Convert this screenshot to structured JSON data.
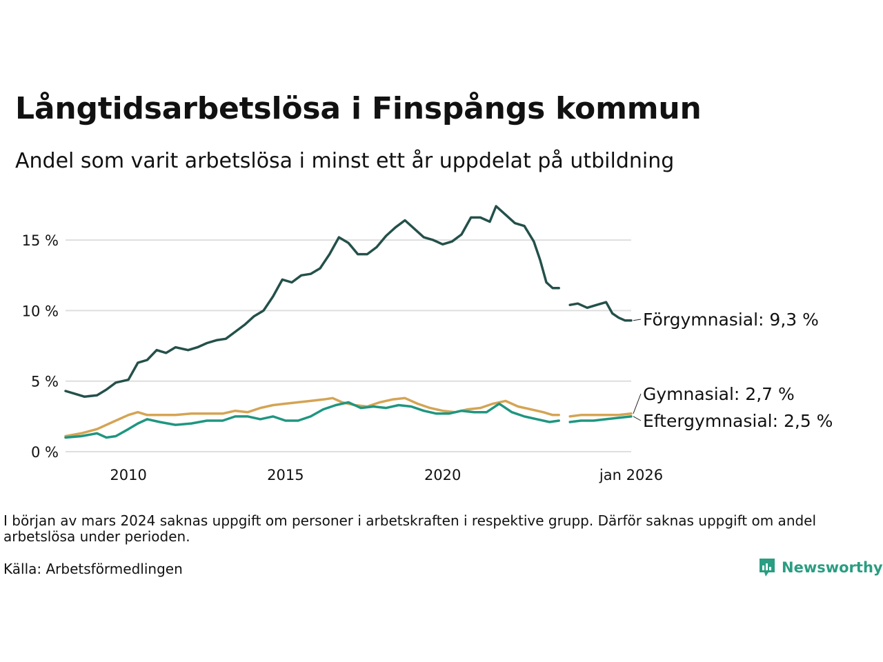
{
  "title": "Långtidsarbetslösa i Finspångs kommun",
  "subtitle": "Andel som varit arbetslösa i minst ett år uppdelat på utbildning",
  "note": "I början av mars 2024 saknas uppgift om personer i arbetskraften i respektive grupp. Därför saknas uppgift om andel arbetslösa under perioden.",
  "source": "Källa: Arbetsförmedlingen",
  "brand": {
    "name": "Newsworthy",
    "icon": "newsworthy-logo-icon",
    "color": "#2a9d82"
  },
  "chart_data": {
    "type": "line",
    "title": "Långtidsarbetslösa i Finspångs kommun",
    "xlabel": "",
    "ylabel": "",
    "x_unit": "year (decimal)",
    "xlim": [
      2008.0,
      2026.0
    ],
    "ylim": [
      0,
      17.5
    ],
    "grid": true,
    "y_ticks": [
      {
        "value": 0,
        "label": "0 %"
      },
      {
        "value": 5,
        "label": "5 %"
      },
      {
        "value": 10,
        "label": "10 %"
      },
      {
        "value": 15,
        "label": "15 %"
      }
    ],
    "x_ticks": [
      {
        "value": 2010,
        "label": "2010"
      },
      {
        "value": 2015,
        "label": "2015"
      },
      {
        "value": 2020,
        "label": "2020"
      },
      {
        "value": 2026,
        "label": "jan 2026"
      }
    ],
    "gap": [
      2023.7,
      2024.05
    ],
    "series": [
      {
        "name": "Förgymnasial",
        "end_label": "Förgymnasial: 9,3 %",
        "color": "#24504a",
        "points": [
          [
            2008.0,
            4.3
          ],
          [
            2008.3,
            4.1
          ],
          [
            2008.6,
            3.9
          ],
          [
            2009.0,
            4.0
          ],
          [
            2009.3,
            4.4
          ],
          [
            2009.6,
            4.9
          ],
          [
            2010.0,
            5.1
          ],
          [
            2010.3,
            6.3
          ],
          [
            2010.6,
            6.5
          ],
          [
            2010.9,
            7.2
          ],
          [
            2011.2,
            7.0
          ],
          [
            2011.5,
            7.4
          ],
          [
            2011.9,
            7.2
          ],
          [
            2012.2,
            7.4
          ],
          [
            2012.5,
            7.7
          ],
          [
            2012.8,
            7.9
          ],
          [
            2013.1,
            8.0
          ],
          [
            2013.4,
            8.5
          ],
          [
            2013.7,
            9.0
          ],
          [
            2014.0,
            9.6
          ],
          [
            2014.3,
            10.0
          ],
          [
            2014.6,
            11.0
          ],
          [
            2014.9,
            12.2
          ],
          [
            2015.2,
            12.0
          ],
          [
            2015.5,
            12.5
          ],
          [
            2015.8,
            12.6
          ],
          [
            2016.1,
            13.0
          ],
          [
            2016.4,
            14.0
          ],
          [
            2016.7,
            15.2
          ],
          [
            2017.0,
            14.8
          ],
          [
            2017.3,
            14.0
          ],
          [
            2017.6,
            14.0
          ],
          [
            2017.9,
            14.5
          ],
          [
            2018.2,
            15.3
          ],
          [
            2018.5,
            15.9
          ],
          [
            2018.8,
            16.4
          ],
          [
            2019.1,
            15.8
          ],
          [
            2019.4,
            15.2
          ],
          [
            2019.7,
            15.0
          ],
          [
            2020.0,
            14.7
          ],
          [
            2020.3,
            14.9
          ],
          [
            2020.6,
            15.4
          ],
          [
            2020.9,
            16.6
          ],
          [
            2021.2,
            16.6
          ],
          [
            2021.5,
            16.3
          ],
          [
            2021.7,
            17.4
          ],
          [
            2022.0,
            16.8
          ],
          [
            2022.3,
            16.2
          ],
          [
            2022.6,
            16.0
          ],
          [
            2022.9,
            14.9
          ],
          [
            2023.1,
            13.6
          ],
          [
            2023.3,
            12.0
          ],
          [
            2023.5,
            11.6
          ],
          [
            2023.7,
            11.6
          ],
          [
            2024.05,
            10.4
          ],
          [
            2024.3,
            10.5
          ],
          [
            2024.6,
            10.2
          ],
          [
            2024.9,
            10.4
          ],
          [
            2025.2,
            10.6
          ],
          [
            2025.4,
            9.8
          ],
          [
            2025.6,
            9.5
          ],
          [
            2025.8,
            9.3
          ],
          [
            2026.0,
            9.3
          ]
        ]
      },
      {
        "name": "Gymnasial",
        "end_label": "Gymnasial: 2,7 %",
        "color": "#d4a454",
        "points": [
          [
            2008.0,
            1.1
          ],
          [
            2008.5,
            1.3
          ],
          [
            2009.0,
            1.6
          ],
          [
            2009.5,
            2.1
          ],
          [
            2010.0,
            2.6
          ],
          [
            2010.3,
            2.8
          ],
          [
            2010.6,
            2.6
          ],
          [
            2011.0,
            2.6
          ],
          [
            2011.5,
            2.6
          ],
          [
            2012.0,
            2.7
          ],
          [
            2012.5,
            2.7
          ],
          [
            2013.0,
            2.7
          ],
          [
            2013.4,
            2.9
          ],
          [
            2013.8,
            2.8
          ],
          [
            2014.2,
            3.1
          ],
          [
            2014.6,
            3.3
          ],
          [
            2015.0,
            3.4
          ],
          [
            2015.4,
            3.5
          ],
          [
            2015.8,
            3.6
          ],
          [
            2016.2,
            3.7
          ],
          [
            2016.5,
            3.8
          ],
          [
            2016.8,
            3.5
          ],
          [
            2017.2,
            3.3
          ],
          [
            2017.6,
            3.2
          ],
          [
            2018.0,
            3.5
          ],
          [
            2018.4,
            3.7
          ],
          [
            2018.8,
            3.8
          ],
          [
            2019.2,
            3.4
          ],
          [
            2019.6,
            3.1
          ],
          [
            2020.0,
            2.9
          ],
          [
            2020.4,
            2.8
          ],
          [
            2020.8,
            3.0
          ],
          [
            2021.2,
            3.1
          ],
          [
            2021.6,
            3.4
          ],
          [
            2022.0,
            3.6
          ],
          [
            2022.4,
            3.2
          ],
          [
            2022.8,
            3.0
          ],
          [
            2023.2,
            2.8
          ],
          [
            2023.5,
            2.6
          ],
          [
            2023.7,
            2.6
          ],
          [
            2024.05,
            2.5
          ],
          [
            2024.4,
            2.6
          ],
          [
            2024.8,
            2.6
          ],
          [
            2025.2,
            2.6
          ],
          [
            2025.6,
            2.6
          ],
          [
            2026.0,
            2.7
          ]
        ]
      },
      {
        "name": "Eftergymnasial",
        "end_label": "Eftergymnasial: 2,5 %",
        "color": "#1e9680",
        "points": [
          [
            2008.0,
            1.0
          ],
          [
            2008.5,
            1.1
          ],
          [
            2009.0,
            1.3
          ],
          [
            2009.3,
            1.0
          ],
          [
            2009.6,
            1.1
          ],
          [
            2010.0,
            1.6
          ],
          [
            2010.3,
            2.0
          ],
          [
            2010.6,
            2.3
          ],
          [
            2011.0,
            2.1
          ],
          [
            2011.5,
            1.9
          ],
          [
            2012.0,
            2.0
          ],
          [
            2012.5,
            2.2
          ],
          [
            2013.0,
            2.2
          ],
          [
            2013.4,
            2.5
          ],
          [
            2013.8,
            2.5
          ],
          [
            2014.2,
            2.3
          ],
          [
            2014.6,
            2.5
          ],
          [
            2015.0,
            2.2
          ],
          [
            2015.4,
            2.2
          ],
          [
            2015.8,
            2.5
          ],
          [
            2016.2,
            3.0
          ],
          [
            2016.6,
            3.3
          ],
          [
            2017.0,
            3.5
          ],
          [
            2017.4,
            3.1
          ],
          [
            2017.8,
            3.2
          ],
          [
            2018.2,
            3.1
          ],
          [
            2018.6,
            3.3
          ],
          [
            2019.0,
            3.2
          ],
          [
            2019.4,
            2.9
          ],
          [
            2019.8,
            2.7
          ],
          [
            2020.2,
            2.7
          ],
          [
            2020.6,
            2.9
          ],
          [
            2021.0,
            2.8
          ],
          [
            2021.4,
            2.8
          ],
          [
            2021.8,
            3.4
          ],
          [
            2022.2,
            2.8
          ],
          [
            2022.6,
            2.5
          ],
          [
            2023.0,
            2.3
          ],
          [
            2023.4,
            2.1
          ],
          [
            2023.7,
            2.2
          ],
          [
            2024.05,
            2.1
          ],
          [
            2024.4,
            2.2
          ],
          [
            2024.8,
            2.2
          ],
          [
            2025.2,
            2.3
          ],
          [
            2025.6,
            2.4
          ],
          [
            2026.0,
            2.5
          ]
        ]
      }
    ]
  }
}
